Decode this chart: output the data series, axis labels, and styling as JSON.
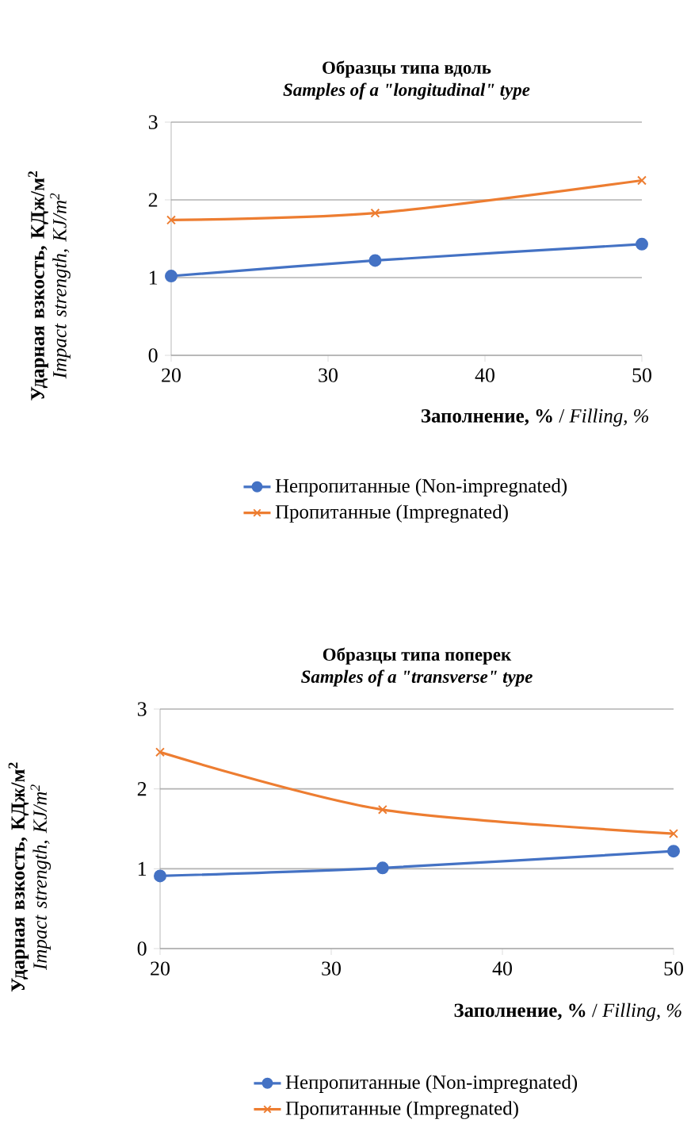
{
  "chart_data": [
    {
      "type": "line",
      "title": "Образцы типа вдоль",
      "subtitle": "Samples of a \"longitudinal\" type",
      "xlabel": "**Заполнение, %**  / *Filling, %*",
      "ylabel": "**Ударная взкость, КДж/м$^{2}$** *Impact strength, KJ/m$^{2}$*",
      "x": [
        20,
        33,
        50
      ],
      "series": [
        {
          "name": "Непропитанные (Non-impregnated)",
          "color": "#4472c4",
          "marker": "circle",
          "values": [
            1.02,
            1.22,
            1.43
          ]
        },
        {
          "name": "Пропитанные (Impregnated)",
          "color": "#ed7d31",
          "marker": "cross",
          "values": [
            1.74,
            1.83,
            2.25
          ]
        }
      ],
      "xlim": [
        20,
        50
      ],
      "xticks": [
        20,
        30,
        40,
        50
      ],
      "ylim": [
        0,
        3
      ],
      "yticks": [
        0,
        1,
        2,
        3
      ],
      "grid": "y",
      "legend": "bottom"
    },
    {
      "type": "line",
      "title": "Образцы типа поперек",
      "subtitle": "Samples of a \"transverse\" type",
      "xlabel": "**Заполнение, %** / *Filling, %*",
      "ylabel": "**Ударная взкость, КДж/м$^{2}$** *Impact strength, KJ/m$^{2}$*",
      "x": [
        20,
        33,
        50
      ],
      "series": [
        {
          "name": "Непропитанные (Non-impregnated)",
          "color": "#4472c4",
          "marker": "circle",
          "values": [
            0.91,
            1.01,
            1.22
          ]
        },
        {
          "name": "Пропитанные (Impregnated)",
          "color": "#ed7d31",
          "marker": "cross",
          "values": [
            2.46,
            1.74,
            1.44
          ]
        }
      ],
      "xlim": [
        20,
        50
      ],
      "xticks": [
        20,
        30,
        40,
        50
      ],
      "ylim": [
        0,
        3
      ],
      "yticks": [
        0,
        1,
        2,
        3
      ],
      "grid": "y",
      "legend": "bottom"
    }
  ]
}
